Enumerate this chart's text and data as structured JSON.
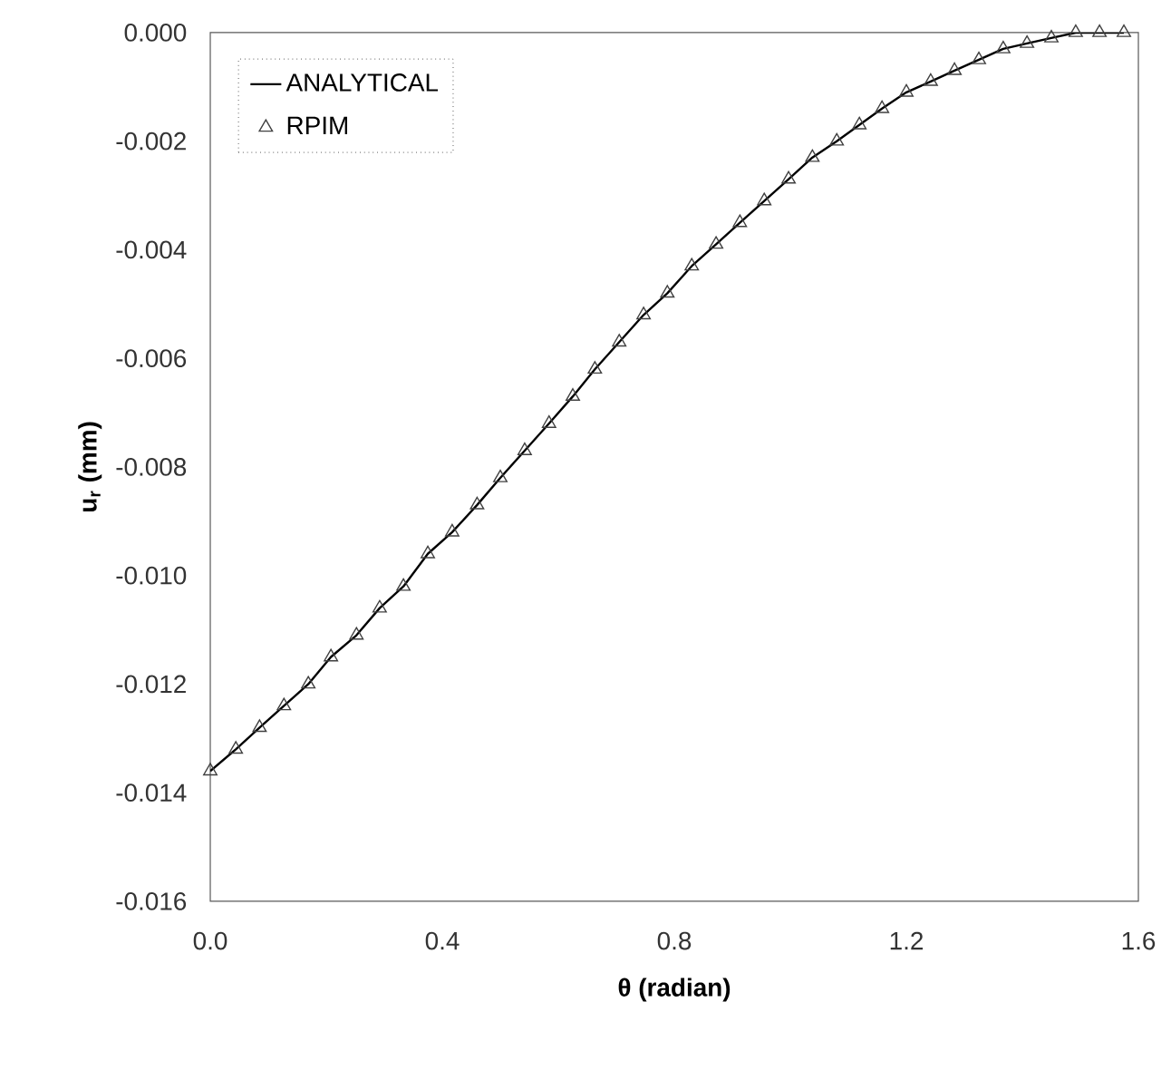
{
  "chart_data": {
    "type": "line",
    "xlabel": "θ (radian)",
    "ylabel": "u$_{r}$ (mm)",
    "x": [
      0,
      0.044,
      0.085,
      0.127,
      0.169,
      0.208,
      0.252,
      0.292,
      0.333,
      0.375,
      0.417,
      0.46,
      0.5,
      0.542,
      0.584,
      0.625,
      0.663,
      0.705,
      0.747,
      0.788,
      0.83,
      0.872,
      0.913,
      0.955,
      0.997,
      1.038,
      1.08,
      1.119,
      1.158,
      1.2,
      1.242,
      1.283,
      1.325,
      1.367,
      1.408,
      1.45,
      1.492,
      1.533,
      1.575
    ],
    "series": [
      {
        "name": "ANALYTICAL",
        "color": "#000000",
        "marker": "none",
        "line_style": "solid",
        "values": [
          -0.0136,
          -0.0132,
          -0.0128,
          -0.0124,
          -0.012,
          -0.0115,
          -0.0111,
          -0.0106,
          -0.0102,
          -0.0096,
          -0.0092,
          -0.0087,
          -0.0082,
          -0.0077,
          -0.0072,
          -0.0067,
          -0.0062,
          -0.0057,
          -0.0052,
          -0.0048,
          -0.0043,
          -0.0039,
          -0.0035,
          -0.0031,
          -0.0027,
          -0.0023,
          -0.002,
          -0.0017,
          -0.0014,
          -0.0011,
          -0.0009,
          -0.0007,
          -0.0005,
          -0.0003,
          -0.0002,
          -0.0001,
          -0.0,
          0.0,
          0.0
        ]
      },
      {
        "name": "RPIM",
        "type": "scatter",
        "color": "#404040",
        "marker": "triangle",
        "values": [
          -0.0136,
          -0.0132,
          -0.0128,
          -0.0124,
          -0.012,
          -0.0115,
          -0.0111,
          -0.0106,
          -0.0102,
          -0.0096,
          -0.0092,
          -0.0087,
          -0.0082,
          -0.0077,
          -0.0072,
          -0.0067,
          -0.0062,
          -0.0057,
          -0.0052,
          -0.0048,
          -0.0043,
          -0.0039,
          -0.0035,
          -0.0031,
          -0.0027,
          -0.0023,
          -0.002,
          -0.0017,
          -0.0014,
          -0.0011,
          -0.0009,
          -0.0007,
          -0.0005,
          -0.0003,
          -0.0002,
          -0.0001,
          -0.0,
          0.0,
          0.0
        ]
      }
    ],
    "xlim": [
      0,
      1.6
    ],
    "ylim": [
      -0.016,
      0
    ],
    "xticks": [
      {
        "value": 0,
        "label": "0.0"
      },
      0.4,
      0.8,
      1.2,
      1.6
    ],
    "yticks": [
      {
        "value": -0.016,
        "label": "-0.016"
      },
      {
        "value": -0.014,
        "label": "-0.014"
      },
      {
        "value": -0.012,
        "label": "-0.012"
      },
      {
        "value": -0.01,
        "label": "-0.010"
      },
      {
        "value": -0.008,
        "label": "-0.008"
      },
      {
        "value": -0.006,
        "label": "-0.006"
      },
      {
        "value": -0.004,
        "label": "-0.004"
      },
      {
        "value": -0.002,
        "label": "-0.002"
      },
      {
        "value": 0,
        "label": "0.000"
      }
    ],
    "grid": false,
    "legend": "top left"
  }
}
